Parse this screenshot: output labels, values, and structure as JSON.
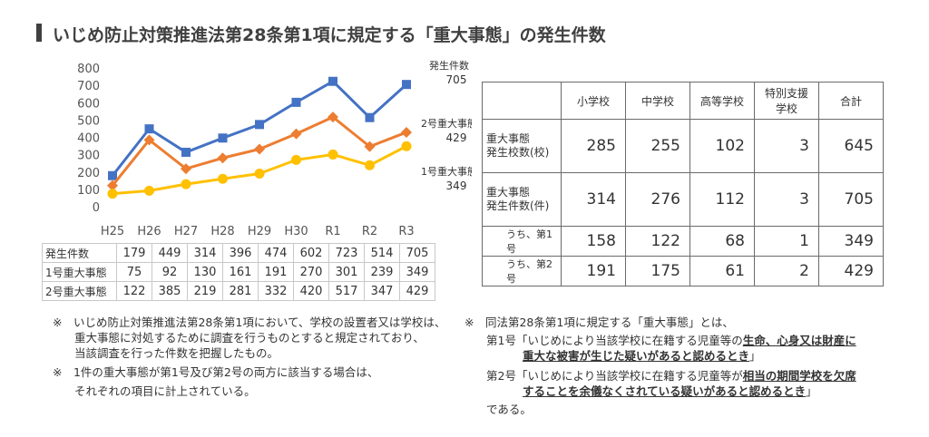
{
  "title": "いじめ防止対策推進法第28条第1項に規定する「重大事態」の発生件数",
  "chart_data": {
    "type": "line",
    "categories": [
      "H25",
      "H26",
      "H27",
      "H28",
      "H29",
      "H30",
      "R1",
      "R2",
      "R3"
    ],
    "series": [
      {
        "name": "発生件数",
        "values": [
          179,
          449,
          314,
          396,
          474,
          602,
          723,
          514,
          705
        ],
        "color": "#4472c4",
        "marker": "square"
      },
      {
        "name": "2号重大事態",
        "values": [
          122,
          385,
          219,
          281,
          332,
          420,
          517,
          347,
          429
        ],
        "color": "#ed7d31",
        "marker": "diamond"
      },
      {
        "name": "1号重大事態",
        "values": [
          75,
          92,
          130,
          161,
          191,
          270,
          301,
          239,
          349
        ],
        "color": "#ffc000",
        "marker": "circle"
      }
    ],
    "ylim": [
      0,
      800
    ],
    "yticks": [
      0,
      100,
      200,
      300,
      400,
      500,
      600,
      700,
      800
    ],
    "grid": false,
    "end_labels": {
      "total": {
        "name": "発生件数",
        "value": "705"
      },
      "type2": {
        "name": "2号重大事態",
        "value": "429"
      },
      "type1": {
        "name": "1号重大事態",
        "value": "349"
      }
    }
  },
  "data_table": {
    "rows": [
      {
        "label": "発生件数",
        "values": [
          "179",
          "449",
          "314",
          "396",
          "474",
          "602",
          "723",
          "514",
          "705"
        ]
      },
      {
        "label": "1号重大事態",
        "values": [
          "75",
          "92",
          "130",
          "161",
          "191",
          "270",
          "301",
          "239",
          "349"
        ]
      },
      {
        "label": "2号重大事態",
        "values": [
          "122",
          "385",
          "219",
          "281",
          "332",
          "420",
          "517",
          "347",
          "429"
        ]
      }
    ]
  },
  "stats_table": {
    "headers": [
      "小学校",
      "中学校",
      "高等学校",
      "特別支援\n学校",
      "合計"
    ],
    "rows": [
      {
        "label": "重大事態\n発生校数(校)",
        "values": [
          "285",
          "255",
          "102",
          "3",
          "645"
        ]
      },
      {
        "label": "重大事態\n発生件数(件)",
        "values": [
          "314",
          "276",
          "112",
          "3",
          "705"
        ]
      },
      {
        "label": "うち、第1号",
        "values": [
          "158",
          "122",
          "68",
          "1",
          "349"
        ]
      },
      {
        "label": "うち、第2号",
        "values": [
          "191",
          "175",
          "61",
          "2",
          "429"
        ]
      }
    ]
  },
  "notes_left": {
    "n1_line1": "※　いじめ防止対策推進法第28条第1項において、学校の設置者又は学校は、",
    "n1_line2": "重大事態に対処するために調査を行うものとすると規定されており、",
    "n1_line3": "当該調査を行った件数を把握したもの。",
    "n2_line1": "※　1件の重大事態が第1号及び第2号の両方に該当する場合は、",
    "n2_line2": "それぞれの項目に計上されている。"
  },
  "notes_right": {
    "intro": "※　同法第28条第1項に規定する「重大事態」とは、",
    "d1_prefix": "第1号「いじめにより当該学校に在籍する児童等の",
    "d1_hl1": "生命、心身又は財産に",
    "d1_hl2": "重大な被害が生じた疑いがあると認めるとき",
    "d1_suffix": "」",
    "d2_prefix": "第2号「いじめにより当該学校に在籍する児童等が",
    "d2_hl1": "相当の期間学校を欠席",
    "d2_hl2": "することを余儀なくされている疑いがあると認めるとき",
    "d2_suffix": "」",
    "outro": "である。"
  }
}
